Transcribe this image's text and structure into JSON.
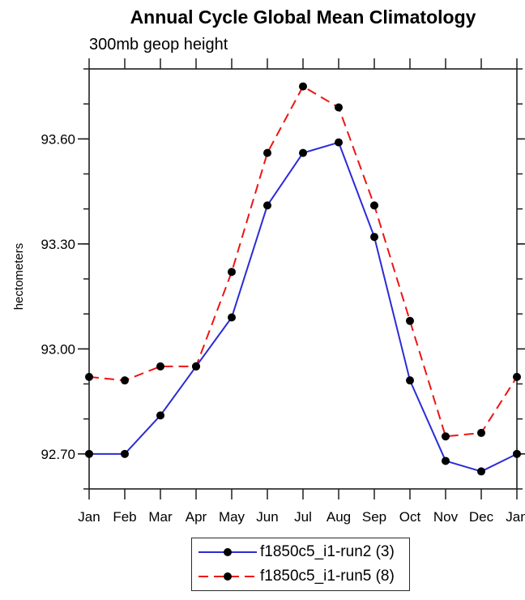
{
  "chart_data": {
    "type": "line",
    "title": "Annual Cycle Global Mean Climatology",
    "subtitle": "300mb geop height",
    "ylabel": "hectometers",
    "categories": [
      "Jan",
      "Feb",
      "Mar",
      "Apr",
      "May",
      "Jun",
      "Jul",
      "Aug",
      "Sep",
      "Oct",
      "Nov",
      "Dec",
      "Jan"
    ],
    "ylim": [
      92.6,
      93.8
    ],
    "yticks_major": [
      {
        "value": 92.7,
        "label": "92.70"
      },
      {
        "value": 93.0,
        "label": "93.00"
      },
      {
        "value": 93.3,
        "label": "93.30"
      },
      {
        "value": 93.6,
        "label": "93.60"
      }
    ],
    "ytick_minor_step": 0.1,
    "grid": false,
    "legend_position": "bottom-center",
    "axis_color": "#1f1f1f",
    "text_color": "#000000",
    "background_color": "#ffffff",
    "series": [
      {
        "name": "f1850c5_i1-run2 (3)",
        "color": "#2b2bd6",
        "line_style": "solid",
        "marker": "filled-circle",
        "marker_color": "#000000",
        "values": [
          92.7,
          92.7,
          92.81,
          92.95,
          93.09,
          93.41,
          93.56,
          93.59,
          93.32,
          92.91,
          92.68,
          92.65,
          92.7
        ]
      },
      {
        "name": "f1850c5_i1-run5 (8)",
        "color": "#ee1414",
        "line_style": "dashed",
        "marker": "filled-circle",
        "marker_color": "#000000",
        "values": [
          92.92,
          92.91,
          92.95,
          92.95,
          93.22,
          93.56,
          93.75,
          93.69,
          93.41,
          93.08,
          92.75,
          92.76,
          92.92
        ]
      }
    ]
  }
}
